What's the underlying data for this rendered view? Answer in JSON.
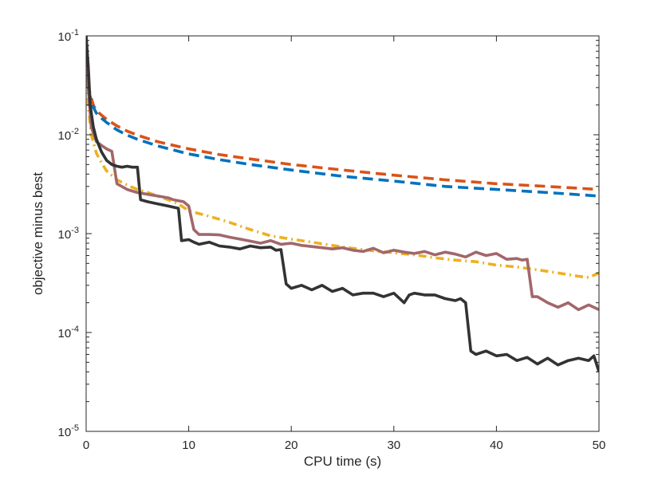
{
  "chart_data": {
    "type": "line",
    "title": "",
    "xlabel": "CPU time (s)",
    "ylabel": "objective minus best",
    "xlim": [
      0,
      50
    ],
    "ylim": [
      1e-05,
      0.1
    ],
    "yscale": "log",
    "grid": false,
    "x_ticks": [
      {
        "value": 0,
        "label": "0"
      },
      {
        "value": 10,
        "label": "10"
      },
      {
        "value": 20,
        "label": "20"
      },
      {
        "value": 30,
        "label": "30"
      },
      {
        "value": 40,
        "label": "40"
      },
      {
        "value": 50,
        "label": "50"
      }
    ],
    "y_ticks": [
      {
        "value": 0.1,
        "base": "10",
        "exp": "-1"
      },
      {
        "value": 0.01,
        "base": "10",
        "exp": "-2"
      },
      {
        "value": 0.001,
        "base": "10",
        "exp": "-3"
      },
      {
        "value": 0.0001,
        "base": "10",
        "exp": "-4"
      },
      {
        "value": 1e-05,
        "base": "10",
        "exp": "-5"
      }
    ],
    "series": [
      {
        "name": "orange-dashed",
        "color": "#D95319",
        "style": "dashed",
        "x": [
          0,
          0.3,
          0.7,
          1,
          1.5,
          2,
          3,
          4,
          5,
          7,
          10,
          13,
          16,
          20,
          25,
          30,
          35,
          40,
          45,
          50
        ],
        "y": [
          0.07,
          0.028,
          0.02,
          0.0175,
          0.0158,
          0.0143,
          0.0123,
          0.0109,
          0.0099,
          0.0085,
          0.0072,
          0.0063,
          0.0057,
          0.005,
          0.0044,
          0.0039,
          0.0035,
          0.0032,
          0.003,
          0.0028
        ]
      },
      {
        "name": "blue-dashed",
        "color": "#0072BD",
        "style": "dashed",
        "x": [
          0,
          0.3,
          0.7,
          1,
          1.5,
          2,
          3,
          4,
          5,
          7,
          10,
          13,
          16,
          20,
          25,
          30,
          35,
          40,
          45,
          50
        ],
        "y": [
          0.06,
          0.026,
          0.019,
          0.0165,
          0.0147,
          0.0133,
          0.0112,
          0.0099,
          0.009,
          0.0077,
          0.0064,
          0.0056,
          0.005,
          0.0044,
          0.0038,
          0.0034,
          0.003,
          0.0028,
          0.0026,
          0.0024
        ]
      },
      {
        "name": "yellow-dashdot",
        "color": "#EDB120",
        "style": "dashdot",
        "x": [
          0,
          0.2,
          0.5,
          1,
          1.5,
          2,
          3,
          4,
          5,
          6,
          7,
          8,
          9,
          10,
          12,
          14,
          16,
          18,
          20,
          22,
          24,
          26,
          28,
          30,
          32,
          34,
          36,
          38,
          40,
          42,
          44,
          46,
          48,
          49,
          50
        ],
        "y": [
          0.08,
          0.02,
          0.01,
          0.0065,
          0.0052,
          0.0043,
          0.0035,
          0.0031,
          0.0028,
          0.0026,
          0.0024,
          0.0022,
          0.002,
          0.0017,
          0.0015,
          0.0013,
          0.0011,
          0.00095,
          0.00088,
          0.00082,
          0.00076,
          0.00071,
          0.00067,
          0.00064,
          0.00061,
          0.00057,
          0.00054,
          0.00052,
          0.00048,
          0.00046,
          0.00043,
          0.0004,
          0.00037,
          0.00036,
          0.0004
        ]
      },
      {
        "name": "mauve-solid",
        "color": "#A2676B",
        "style": "solid",
        "x": [
          0,
          0.2,
          0.5,
          1,
          1.5,
          2,
          2.5,
          3,
          4,
          5,
          6,
          7,
          8,
          8.5,
          9.5,
          10,
          10.5,
          11,
          12,
          13,
          14,
          15,
          16,
          17,
          18,
          19,
          20,
          21,
          22,
          23,
          24,
          25,
          26,
          27,
          28,
          29,
          30,
          31,
          32,
          33,
          34,
          35,
          36,
          37,
          38,
          39,
          40,
          41,
          42,
          42.5,
          43,
          43.5,
          44,
          45,
          46,
          47,
          48,
          49,
          50
        ],
        "y": [
          0.09,
          0.03,
          0.012,
          0.0085,
          0.0078,
          0.0072,
          0.0068,
          0.0032,
          0.0028,
          0.0026,
          0.0025,
          0.0024,
          0.0023,
          0.0022,
          0.0021,
          0.0019,
          0.0011,
          0.00098,
          0.00098,
          0.00097,
          0.00092,
          0.00088,
          0.00084,
          0.0008,
          0.00085,
          0.00078,
          0.0008,
          0.00076,
          0.00074,
          0.00072,
          0.0007,
          0.00072,
          0.00068,
          0.00066,
          0.00071,
          0.00064,
          0.00068,
          0.00065,
          0.00063,
          0.00066,
          0.00061,
          0.00065,
          0.00062,
          0.00058,
          0.00065,
          0.0006,
          0.00063,
          0.00055,
          0.00056,
          0.00054,
          0.00055,
          0.00023,
          0.00023,
          0.0002,
          0.00018,
          0.0002,
          0.00017,
          0.00019,
          0.00017
        ]
      },
      {
        "name": "black-solid",
        "color": "#333333",
        "style": "solid",
        "x": [
          0,
          0.2,
          0.4,
          0.7,
          1,
          1.5,
          2,
          2.5,
          3,
          3.5,
          4,
          4.5,
          5,
          5.3,
          6,
          7,
          8,
          9,
          9.3,
          10,
          10.5,
          11,
          12,
          13,
          14,
          15,
          16,
          17,
          18,
          18.5,
          19,
          19.5,
          20,
          21,
          22,
          23,
          24,
          25,
          26,
          27,
          28,
          29,
          30,
          31,
          31.5,
          32,
          33,
          34,
          35,
          36,
          36.5,
          37,
          37.5,
          38,
          39,
          40,
          41,
          42,
          43,
          44,
          45,
          46,
          47,
          48,
          49,
          49.5,
          50
        ],
        "y": [
          0.1,
          0.05,
          0.02,
          0.012,
          0.009,
          0.0067,
          0.0055,
          0.005,
          0.0048,
          0.0047,
          0.0048,
          0.0047,
          0.0047,
          0.0022,
          0.0021,
          0.002,
          0.0019,
          0.0018,
          0.00085,
          0.00087,
          0.00082,
          0.00078,
          0.00082,
          0.00075,
          0.00073,
          0.0007,
          0.00075,
          0.00072,
          0.00073,
          0.00068,
          0.00069,
          0.00031,
          0.00028,
          0.0003,
          0.00027,
          0.0003,
          0.00026,
          0.00028,
          0.00024,
          0.00025,
          0.00025,
          0.00023,
          0.00025,
          0.0002,
          0.00024,
          0.00025,
          0.00024,
          0.00024,
          0.00022,
          0.00021,
          0.00022,
          0.0002,
          6.5e-05,
          6e-05,
          6.5e-05,
          5.8e-05,
          6e-05,
          5.2e-05,
          5.6e-05,
          4.8e-05,
          5.5e-05,
          4.7e-05,
          5.2e-05,
          5.5e-05,
          5.2e-05,
          5.8e-05,
          4e-05
        ]
      }
    ]
  }
}
